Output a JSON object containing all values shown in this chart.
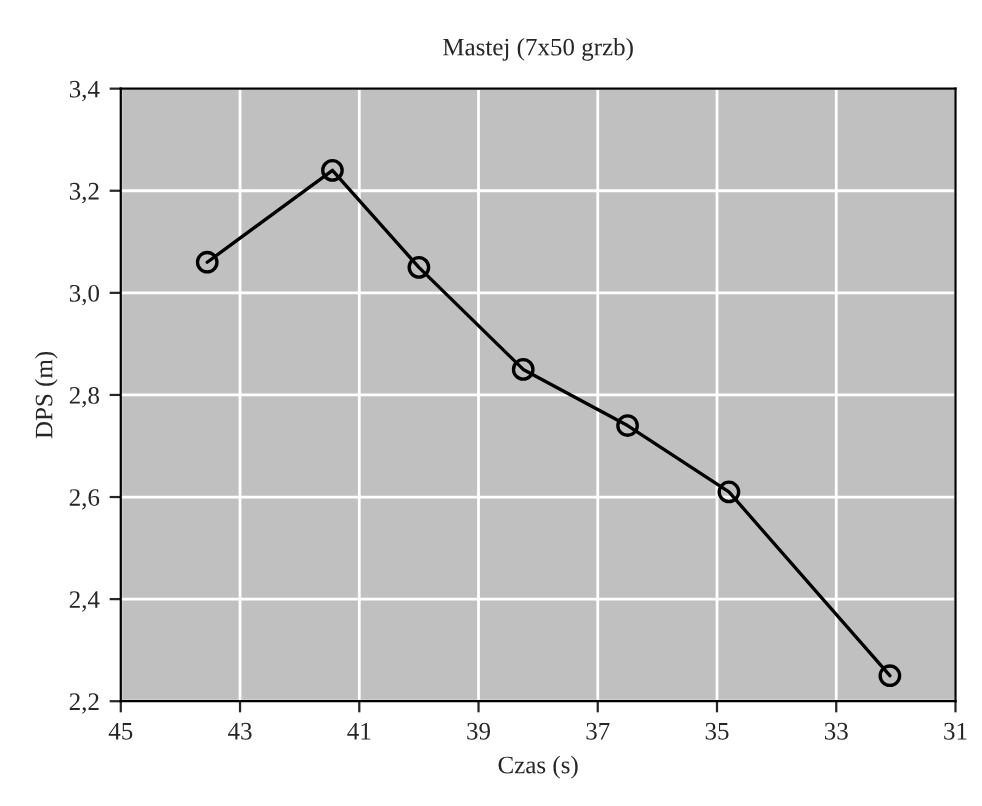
{
  "chart_data": {
    "type": "line",
    "title": "Mastej (7x50 grzb)",
    "xlabel": "Czas (s)",
    "ylabel": "DPS (m)",
    "x": [
      43.55,
      41.45,
      40.0,
      38.25,
      36.5,
      34.8,
      32.1
    ],
    "series": [
      {
        "color": "#000000",
        "values": [
          3.06,
          3.24,
          3.05,
          2.85,
          2.74,
          2.61,
          2.25
        ]
      }
    ],
    "xlim": [
      45,
      31
    ],
    "xticks": [
      45,
      43,
      41,
      39,
      37,
      35,
      33,
      31
    ],
    "ylim": [
      2.2,
      3.4
    ],
    "yticks": [
      {
        "value": 2.2,
        "label": "2,2"
      },
      {
        "value": 2.4,
        "label": "2,4"
      },
      {
        "value": 2.6,
        "label": "2,6"
      },
      {
        "value": 2.8,
        "label": "2,8"
      },
      {
        "value": 3.0,
        "label": "3,0"
      },
      {
        "value": 3.2,
        "label": "3,2"
      },
      {
        "value": 3.4,
        "label": "3,4"
      }
    ],
    "grid": true,
    "marker": "circle",
    "line_style": "solid",
    "legend": false
  }
}
